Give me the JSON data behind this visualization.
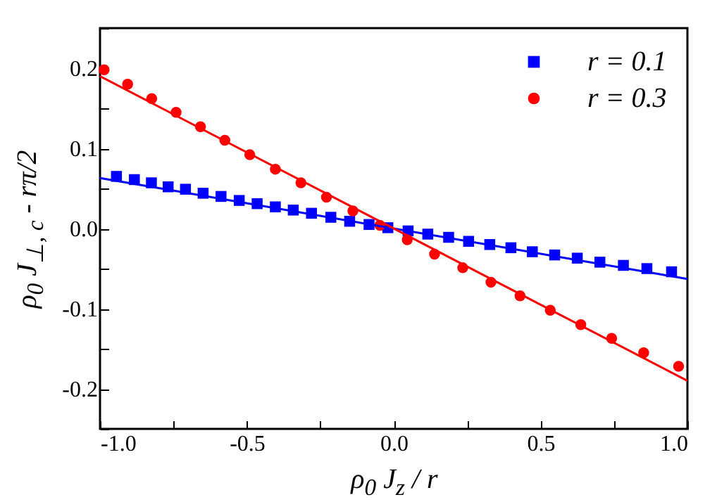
{
  "chart_data": {
    "type": "scatter",
    "xlabel": "ρ$_{0}$ J$_{z}$ / r",
    "ylabel": "ρ$_{0}$ J$_{⊥, c}$ - rπ/2",
    "xlim": [
      -1,
      1
    ],
    "ylim": [
      -0.25,
      0.25
    ],
    "xticks": [
      {
        "value": -1,
        "label": "-1.0"
      },
      {
        "value": -0.75,
        "label": null
      },
      {
        "value": -0.5,
        "label": "-0.5"
      },
      {
        "value": -0.25,
        "label": null
      },
      {
        "value": 0,
        "label": "0.0"
      },
      {
        "value": 0.25,
        "label": null
      },
      {
        "value": 0.5,
        "label": "0.5"
      },
      {
        "value": 0.75,
        "label": null
      },
      {
        "value": 1,
        "label": "1.0"
      }
    ],
    "yticks": [
      {
        "value": -0.25,
        "label": null
      },
      {
        "value": -0.2,
        "label": "-0.2"
      },
      {
        "value": -0.15,
        "label": null
      },
      {
        "value": -0.1,
        "label": "-0.1"
      },
      {
        "value": -0.05,
        "label": null
      },
      {
        "value": 0,
        "label": "0.0"
      },
      {
        "value": 0.05,
        "label": null
      },
      {
        "value": 0.1,
        "label": "0.1"
      },
      {
        "value": 0.15,
        "label": null
      },
      {
        "value": 0.2,
        "label": "0.2"
      },
      {
        "value": 0.25,
        "label": null
      }
    ],
    "grid": false,
    "legend": "top right",
    "series": [
      {
        "name": "r = 0.1",
        "type": "scatter",
        "marker": "square",
        "color": "#0000ff",
        "x": [
          -0.944,
          -0.883,
          -0.825,
          -0.768,
          -0.709,
          -0.649,
          -0.588,
          -0.526,
          -0.465,
          -0.403,
          -0.342,
          -0.28,
          -0.214,
          -0.15,
          -0.084,
          -0.02,
          0.049,
          0.116,
          0.187,
          0.255,
          0.327,
          0.399,
          0.472,
          0.548,
          0.625,
          0.702,
          0.782,
          0.862,
          0.946
        ],
        "values": [
          0.065,
          0.061,
          0.057,
          0.052,
          0.049,
          0.044,
          0.04,
          0.035,
          0.031,
          0.027,
          0.023,
          0.019,
          0.014,
          0.009,
          0.005,
          0.001,
          -0.003,
          -0.007,
          -0.011,
          -0.016,
          -0.02,
          -0.024,
          -0.029,
          -0.033,
          -0.037,
          -0.042,
          -0.046,
          -0.05,
          -0.054
        ]
      },
      {
        "name": "r = 0.3",
        "type": "scatter",
        "marker": "circle",
        "color": "#ff0000",
        "x": [
          -0.986,
          -0.906,
          -0.824,
          -0.741,
          -0.658,
          -0.575,
          -0.49,
          -0.403,
          -0.316,
          -0.229,
          -0.139,
          -0.047,
          0.046,
          0.139,
          0.235,
          0.331,
          0.43,
          0.533,
          0.637,
          0.742,
          0.851,
          0.97
        ],
        "values": [
          0.198,
          0.18,
          0.162,
          0.145,
          0.127,
          0.11,
          0.092,
          0.074,
          0.057,
          0.039,
          0.022,
          0.004,
          -0.014,
          -0.032,
          -0.049,
          -0.067,
          -0.084,
          -0.102,
          -0.12,
          -0.137,
          -0.155,
          -0.172
        ]
      },
      {
        "type": "line",
        "color": "#0000ff",
        "x": [
          -1,
          1
        ],
        "values": [
          0.063,
          -0.063
        ]
      },
      {
        "type": "line",
        "color": "#ff0000",
        "x": [
          -1,
          1
        ],
        "values": [
          0.19,
          -0.19
        ]
      }
    ]
  }
}
